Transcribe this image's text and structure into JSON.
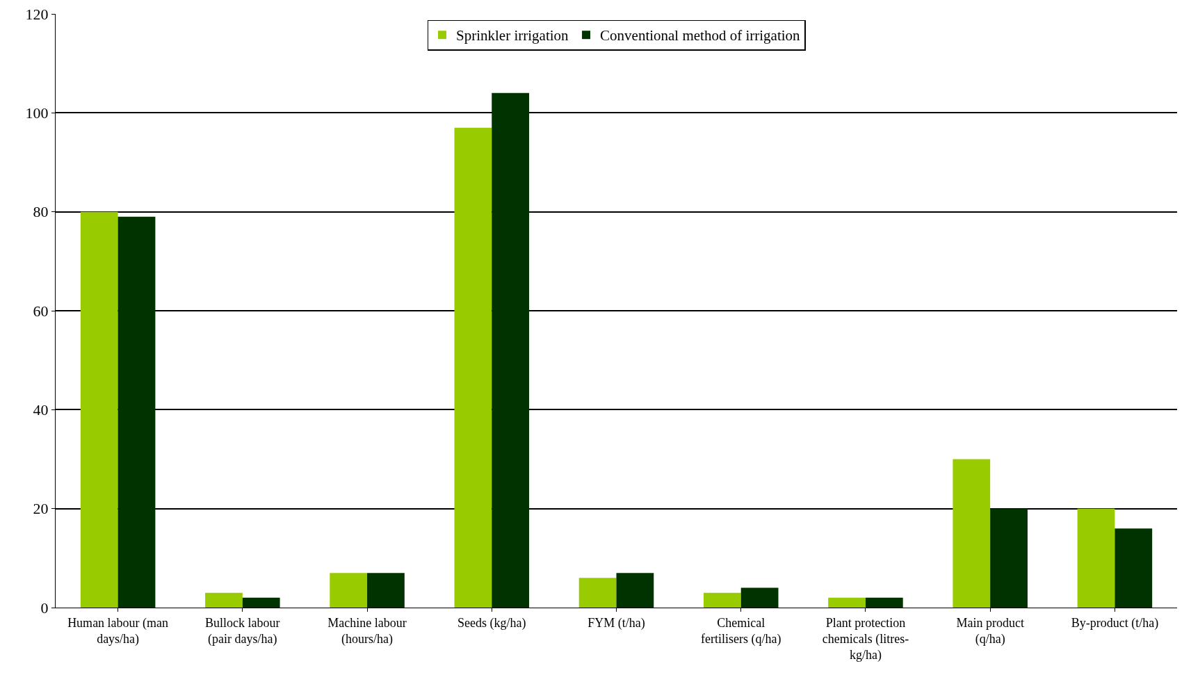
{
  "chart_data": {
    "type": "bar",
    "categories": [
      "Human labour (man days/ha)",
      "Bullock labour (pair days/ha)",
      "Machine labour (hours/ha)",
      "Seeds (kg/ha)",
      "FYM (t/ha)",
      "Chemical fertilisers (q/ha)",
      "Plant protection chemicals (litres-kg/ha)",
      "Main product (q/ha)",
      "By-product (t/ha)"
    ],
    "series": [
      {
        "name": "Sprinkler irrigation",
        "color": "#99cc00",
        "values": [
          80,
          3,
          7,
          97,
          6,
          3,
          2,
          30,
          20
        ]
      },
      {
        "name": "Conventional method of irrigation",
        "color": "#003300",
        "values": [
          79,
          2,
          7,
          104,
          7,
          4,
          2,
          20,
          16
        ]
      }
    ],
    "ylim": [
      0,
      120
    ],
    "yticks": [
      0,
      20,
      40,
      60,
      80,
      100,
      120
    ],
    "grid": "y",
    "legend": "top"
  }
}
